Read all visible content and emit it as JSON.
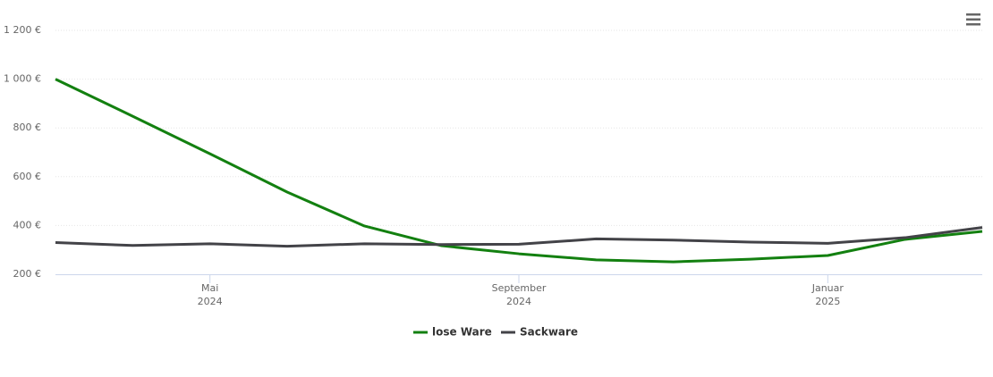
{
  "chart_data": {
    "type": "line",
    "x": [
      "2024-03",
      "2024-04",
      "2024-05",
      "2024-06",
      "2024-07",
      "2024-08",
      "2024-09",
      "2024-10",
      "2024-11",
      "2024-12",
      "2025-01",
      "2025-02",
      "2025-03"
    ],
    "series": [
      {
        "name": "lose Ware",
        "color": "#138010",
        "values": [
          1000,
          848,
          694,
          537,
          398,
          317,
          284,
          259,
          251,
          262,
          277,
          343,
          376
        ]
      },
      {
        "name": "Sackware",
        "color": "#434348",
        "values": [
          330,
          318,
          325,
          315,
          325,
          322,
          323,
          345,
          340,
          332,
          327,
          350,
          392
        ]
      }
    ],
    "xlim": [
      "2024-03",
      "2025-03"
    ],
    "xticks": [
      {
        "value": "2024-05",
        "label": [
          "Mai",
          "2024"
        ]
      },
      {
        "value": "2024-09",
        "label": [
          "September",
          "2024"
        ]
      },
      {
        "value": "2025-01",
        "label": [
          "Januar",
          "2025"
        ]
      }
    ],
    "ylim": [
      200,
      1200
    ],
    "yticks": [
      {
        "value": 200,
        "label": "200 €"
      },
      {
        "value": 400,
        "label": "400 €"
      },
      {
        "value": 600,
        "label": "600 €"
      },
      {
        "value": 800,
        "label": "800 €"
      },
      {
        "value": 1000,
        "label": "1 000 €"
      },
      {
        "value": 1200,
        "label": "1 200 €"
      }
    ],
    "grid": true
  }
}
